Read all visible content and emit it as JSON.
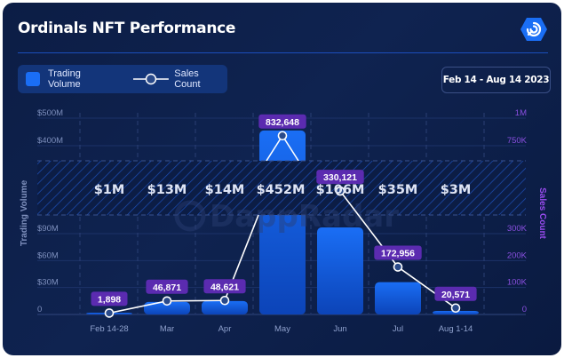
{
  "header": {
    "title": "Ordinals NFT Performance",
    "logo_icon": "dappradar-logo-icon",
    "date_range": "Feb 14 - Aug 14 2023"
  },
  "legend": {
    "items": [
      {
        "label": "Trading Volume",
        "icon": "bar-swatch-icon"
      },
      {
        "label": "Sales Count",
        "icon": "line-marker-icon"
      }
    ]
  },
  "watermark": "DappRadar",
  "colors": {
    "bar": "#1a6ef5",
    "line": "#ffffff",
    "label_bg": "#5b2bb0",
    "right_axis": "#9a4cf0"
  },
  "chart_data": {
    "type": "bar",
    "title": "Ordinals NFT Performance",
    "xlabel": "",
    "ylabel": "Trading Volume",
    "y2label": "Sales Count",
    "categories": [
      "Feb 14-28",
      "Mar",
      "Apr",
      "May",
      "Jun",
      "Jul",
      "Aug 1-14"
    ],
    "axis_break": true,
    "left_ticks": [
      "0",
      "$30M",
      "$60M",
      "$90M",
      "$400M",
      "$500M"
    ],
    "left_tick_values": [
      0,
      30,
      60,
      90,
      400,
      500
    ],
    "right_ticks": [
      "0",
      "100K",
      "200K",
      "300K",
      "750K",
      "1M"
    ],
    "right_tick_values": [
      0,
      100000,
      200000,
      300000,
      750000,
      1000000
    ],
    "grid": true,
    "legend": "top-left",
    "series": [
      {
        "name": "Trading Volume",
        "type": "bar",
        "axis": "left",
        "unit": "$M",
        "values": [
          1,
          13,
          14,
          452,
          106,
          35,
          3
        ],
        "labels": [
          "$1M",
          "$13M",
          "$14M",
          "$452M",
          "$106M",
          "$35M",
          "$3M"
        ]
      },
      {
        "name": "Sales Count",
        "type": "line",
        "axis": "right",
        "values": [
          1898,
          46871,
          48621,
          832648,
          330121,
          172956,
          20571
        ],
        "labels": [
          "1,898",
          "46,871",
          "48,621",
          "832,648",
          "330,121",
          "172,956",
          "20,571"
        ]
      }
    ]
  }
}
